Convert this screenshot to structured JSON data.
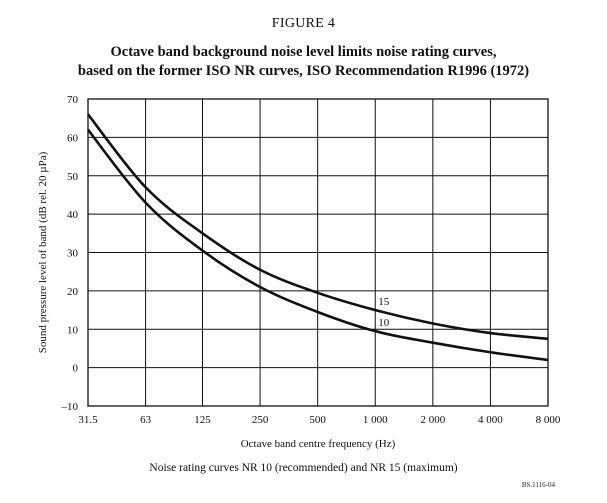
{
  "figure_label": "FIGURE 4",
  "title_line1": "Octave band background noise level limits noise rating curves,",
  "title_line2": "based on the former ISO NR curves, ISO Recommendation R1996 (1972)",
  "caption": "Noise rating curves NR 10 (recommended) and NR 15 (maximum)",
  "reference": "BS.1116-04",
  "chart_data": {
    "type": "line",
    "title": "Octave band background noise level limits noise rating curves, based on the former ISO NR curves, ISO Recommendation R1996 (1972)",
    "xlabel": "Octave band centre frequency (Hz)",
    "ylabel": "Sound pressure level of band (dB rel. 20 µPa)",
    "x_scale": "log2",
    "x_ticks": [
      31.5,
      63,
      125,
      250,
      500,
      1000,
      2000,
      4000,
      8000
    ],
    "x_tick_labels": [
      "31.5",
      "63",
      "125",
      "250",
      "500",
      "1 000",
      "2 000",
      "4 000",
      "8 000"
    ],
    "ylim": [
      -10,
      70
    ],
    "y_ticks": [
      -10,
      0,
      10,
      20,
      30,
      40,
      50,
      60,
      70
    ],
    "y_tick_labels": [
      "–10",
      "0",
      "10",
      "20",
      "30",
      "40",
      "50",
      "60",
      "70"
    ],
    "grid": true,
    "legend": "inline labels at curve ends",
    "series": [
      {
        "name": "15",
        "x": [
          31.5,
          63,
          125,
          250,
          500,
          1000,
          2000,
          4000,
          8000
        ],
        "values": [
          66,
          47,
          35,
          25.5,
          19.5,
          15,
          11.5,
          9,
          7.5
        ],
        "color": "#111111"
      },
      {
        "name": "10",
        "x": [
          31.5,
          63,
          125,
          250,
          500,
          1000,
          2000,
          4000,
          8000
        ],
        "values": [
          62,
          43,
          30.5,
          21,
          14.5,
          9.5,
          6.5,
          4,
          2
        ],
        "color": "#111111"
      }
    ]
  }
}
